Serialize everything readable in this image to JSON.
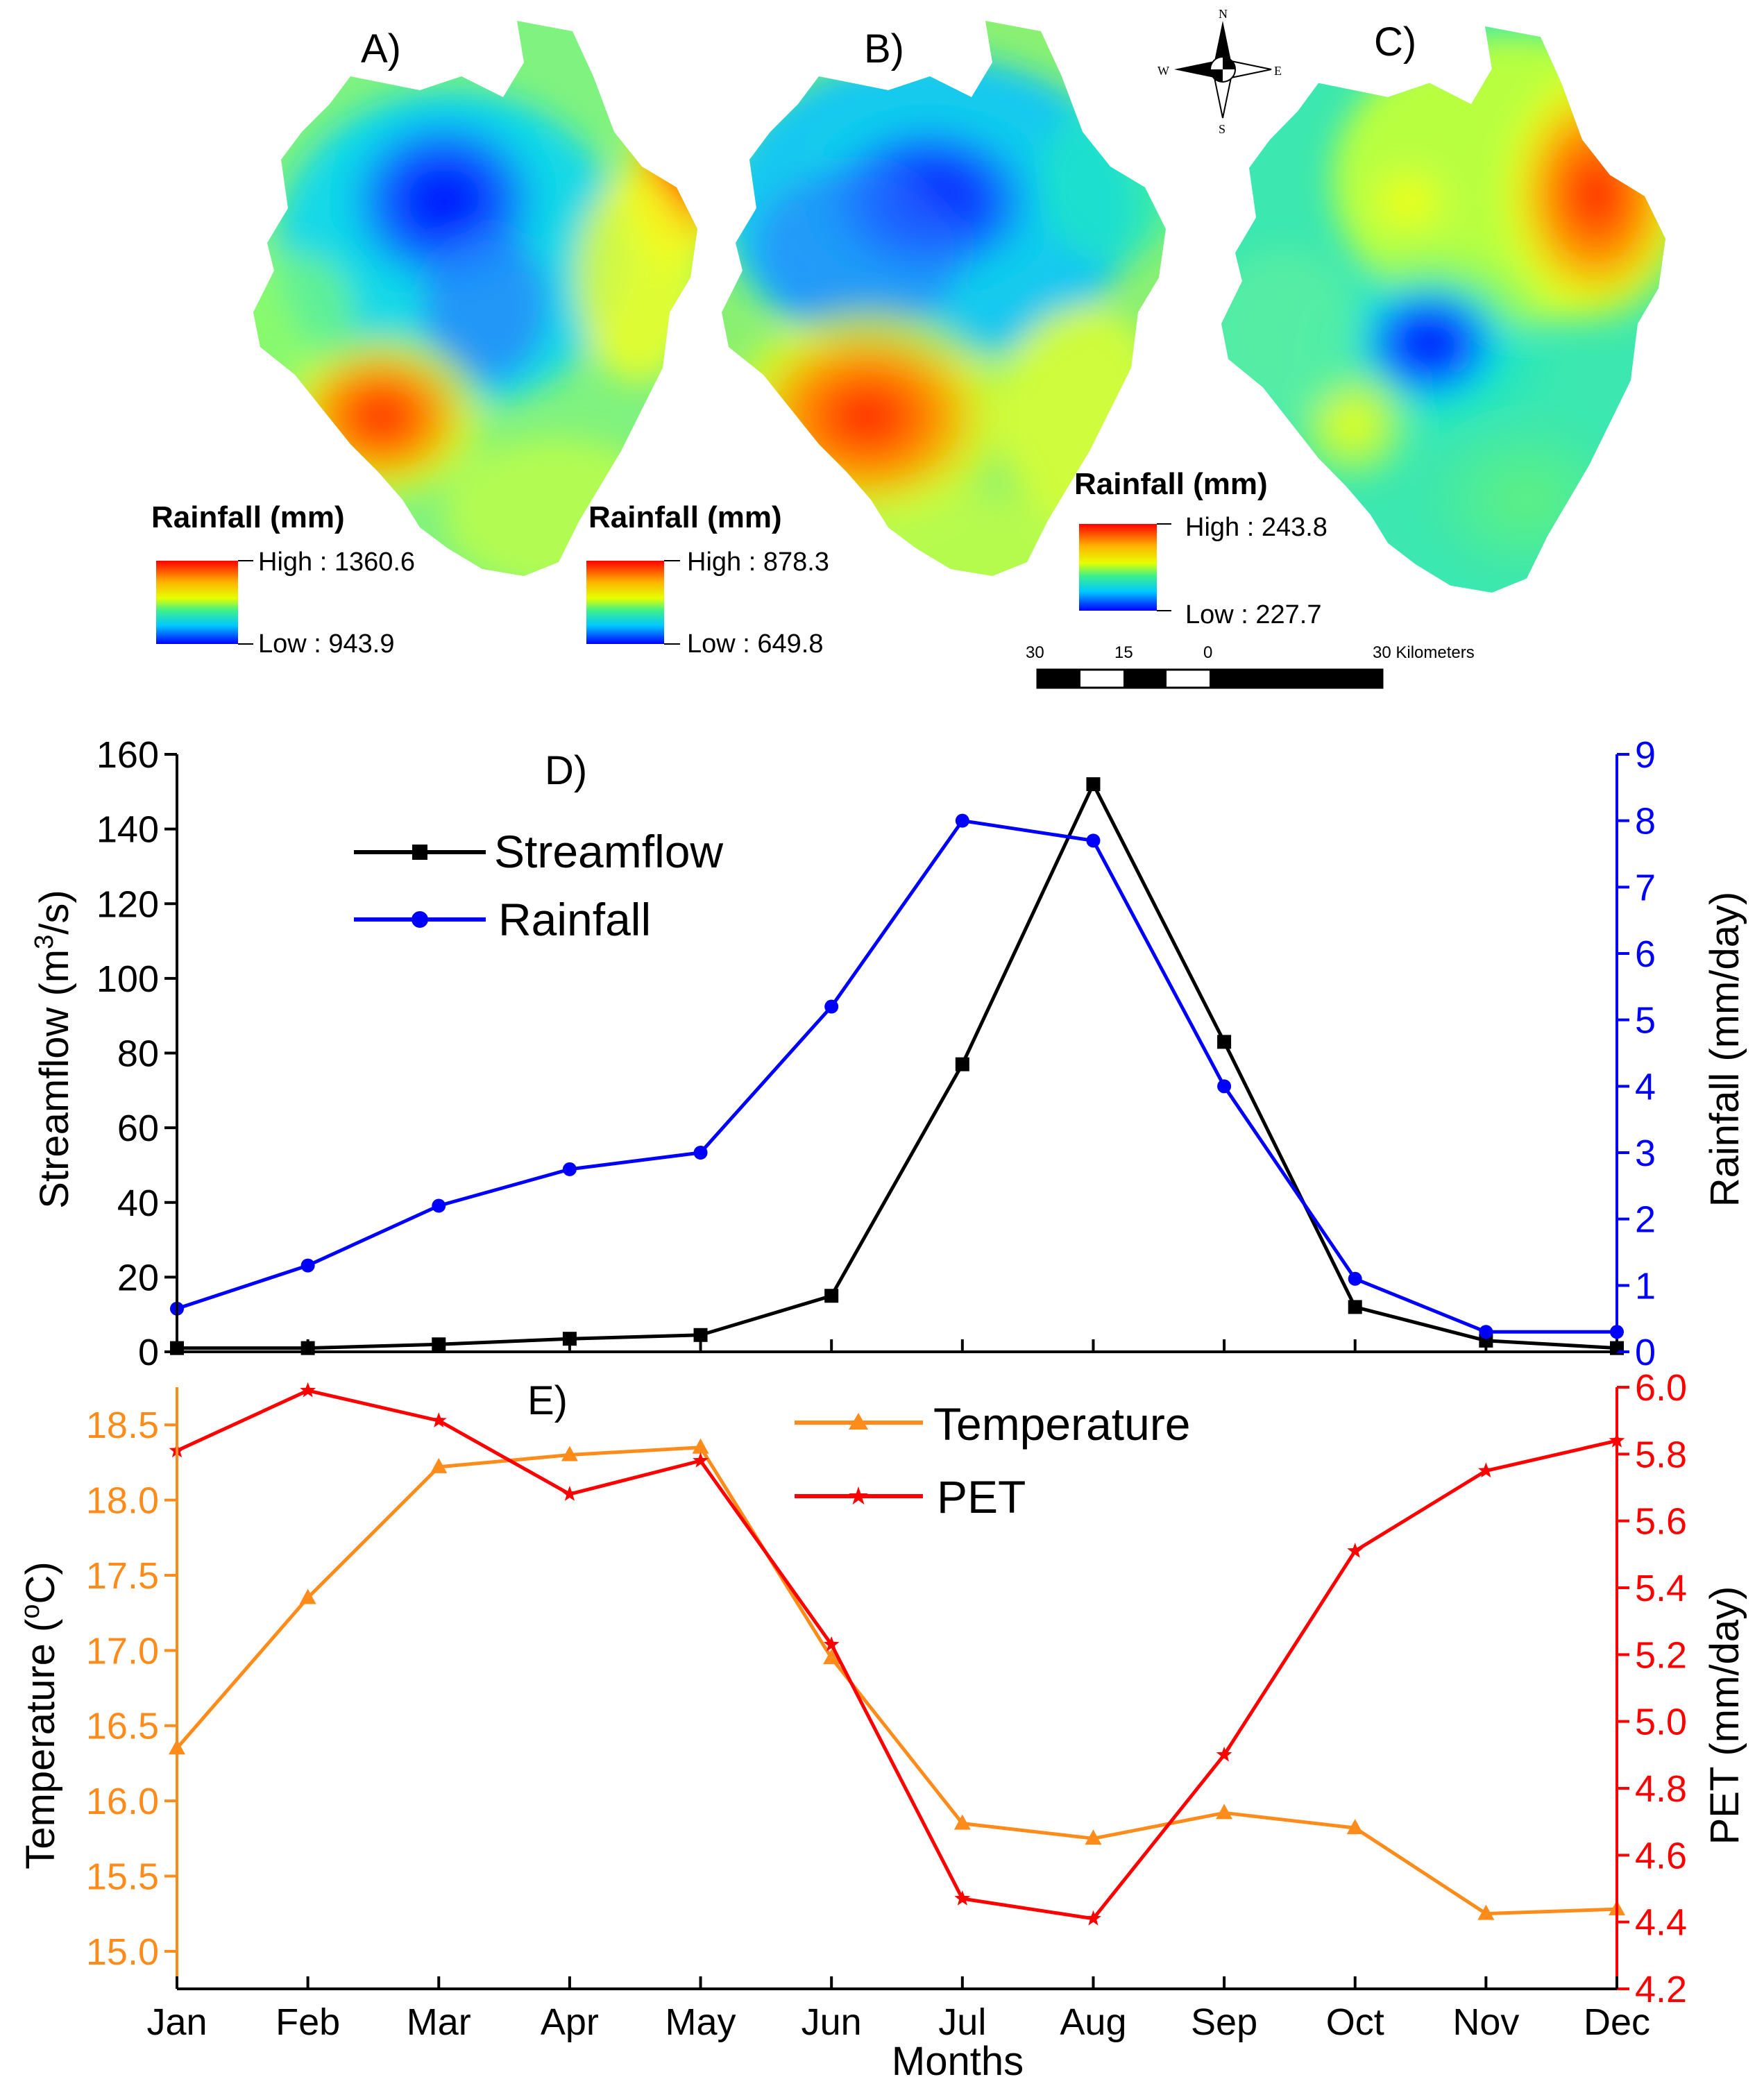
{
  "colors": {
    "streamflow": "#000000",
    "rainfall": "#0000ff",
    "temperature": "#ff8c1a",
    "pet": "#ff0000",
    "map_high": "#ff0000",
    "map_low": "#0000ff"
  },
  "maps": [
    {
      "panel": "A)",
      "legend_title": "Rainfall (mm)",
      "high_label": "High : 1360.6",
      "low_label": "Low : 943.9"
    },
    {
      "panel": "B)",
      "legend_title": "Rainfall (mm)",
      "high_label": "High : 878.3",
      "low_label": "Low : 649.8"
    },
    {
      "panel": "C)",
      "legend_title": "Rainfall (mm)",
      "high_label": "High : 243.8",
      "low_label": "Low : 227.7"
    }
  ],
  "compass": {
    "n": "N",
    "s": "S",
    "e": "E",
    "w": "W"
  },
  "scalebar": {
    "labels": [
      "30",
      "15",
      "0",
      "30 Kilometers"
    ]
  },
  "chart_data": [
    {
      "type": "line",
      "panel": "D)",
      "categories": [
        "Jan",
        "Feb",
        "Mar",
        "Apr",
        "May",
        "Jun",
        "Jul",
        "Aug",
        "Sep",
        "Oct",
        "Nov",
        "Dec"
      ],
      "left_axis": {
        "label_pre": "Streamflow (m",
        "label_sup": "3",
        "label_post": "/s)",
        "ylim": [
          0,
          160
        ],
        "ticks": [
          0,
          20,
          40,
          60,
          80,
          100,
          120,
          140,
          160
        ]
      },
      "right_axis": {
        "label": "Rainfall (mm/day)",
        "ylim": [
          0,
          9
        ],
        "ticks": [
          0,
          1,
          2,
          3,
          4,
          5,
          6,
          7,
          8,
          9
        ]
      },
      "series": [
        {
          "name": "Streamflow",
          "axis": "left",
          "marker": "square",
          "values": [
            1.0,
            1.0,
            2.0,
            3.5,
            4.5,
            15.0,
            77.0,
            152.0,
            83.0,
            12.0,
            3.0,
            1.0
          ]
        },
        {
          "name": "Rainfall",
          "axis": "right",
          "marker": "circle",
          "values": [
            0.65,
            1.3,
            2.2,
            2.75,
            3.0,
            5.2,
            8.0,
            7.7,
            4.0,
            1.1,
            0.3,
            0.3
          ]
        }
      ]
    },
    {
      "type": "line",
      "panel": "E)",
      "categories": [
        "Jan",
        "Feb",
        "Mar",
        "Apr",
        "May",
        "Jun",
        "Jul",
        "Aug",
        "Sep",
        "Oct",
        "Nov",
        "Dec"
      ],
      "xlabel": "Months",
      "left_axis": {
        "label_pre": "Temperature (",
        "label_sup": "o",
        "label_post": "C)",
        "ylim": [
          14.75,
          18.75
        ],
        "ticks": [
          "15.0",
          "15.5",
          "16.0",
          "16.5",
          "17.0",
          "17.5",
          "18.0",
          "18.5"
        ]
      },
      "right_axis": {
        "label": "PET (mm/day)",
        "ylim": [
          4.2,
          6.0
        ],
        "ticks": [
          "4.2",
          "4.4",
          "4.6",
          "4.8",
          "5.0",
          "5.2",
          "5.4",
          "5.6",
          "5.8",
          "6.0"
        ]
      },
      "series": [
        {
          "name": "Temperature",
          "axis": "left",
          "marker": "triangle",
          "values": [
            16.35,
            17.35,
            18.22,
            18.3,
            18.35,
            16.95,
            15.85,
            15.75,
            15.92,
            15.82,
            15.25,
            15.28
          ]
        },
        {
          "name": "PET",
          "axis": "right",
          "marker": "star",
          "values": [
            5.81,
            5.99,
            5.9,
            5.68,
            5.78,
            5.23,
            4.47,
            4.41,
            4.9,
            5.51,
            5.75,
            5.84
          ]
        }
      ]
    }
  ]
}
